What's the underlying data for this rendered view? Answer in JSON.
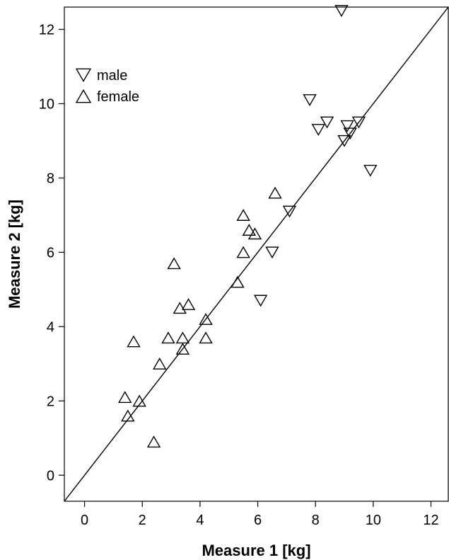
{
  "chart_data": {
    "type": "scatter",
    "xlabel": "Measure 1 [kg]",
    "ylabel": "Measure 2 [kg]",
    "xlim": [
      -0.7,
      12.6
    ],
    "ylim": [
      -0.7,
      12.6
    ],
    "xticks": [
      0,
      2,
      4,
      6,
      8,
      10,
      12
    ],
    "yticks": [
      0,
      2,
      4,
      6,
      8,
      10,
      12
    ],
    "grid": false,
    "legend_position": "top-left",
    "reference_line": {
      "type": "identity",
      "from": [
        -0.7,
        -0.7
      ],
      "to": [
        12.6,
        12.6
      ]
    },
    "series": [
      {
        "name": "male",
        "marker": "triangle-down",
        "points": [
          [
            8.9,
            12.5
          ],
          [
            7.8,
            10.1
          ],
          [
            8.1,
            9.3
          ],
          [
            8.4,
            9.5
          ],
          [
            9.1,
            9.4
          ],
          [
            9.5,
            9.5
          ],
          [
            9.2,
            9.2
          ],
          [
            9.0,
            9.0
          ],
          [
            9.9,
            8.2
          ],
          [
            7.1,
            7.1
          ],
          [
            6.5,
            6.0
          ],
          [
            6.1,
            4.7
          ]
        ]
      },
      {
        "name": "female",
        "marker": "triangle-up",
        "points": [
          [
            6.6,
            7.6
          ],
          [
            5.5,
            7.0
          ],
          [
            5.7,
            6.6
          ],
          [
            5.9,
            6.5
          ],
          [
            5.5,
            6.0
          ],
          [
            5.3,
            5.2
          ],
          [
            3.1,
            5.7
          ],
          [
            3.3,
            4.5
          ],
          [
            3.6,
            4.6
          ],
          [
            4.2,
            4.2
          ],
          [
            4.2,
            3.7
          ],
          [
            2.9,
            3.7
          ],
          [
            3.4,
            3.7
          ],
          [
            3.4,
            3.4
          ],
          [
            1.7,
            3.6
          ],
          [
            2.6,
            3.0
          ],
          [
            1.4,
            2.1
          ],
          [
            1.9,
            2.0
          ],
          [
            1.5,
            1.6
          ],
          [
            2.4,
            0.9
          ]
        ]
      }
    ]
  }
}
